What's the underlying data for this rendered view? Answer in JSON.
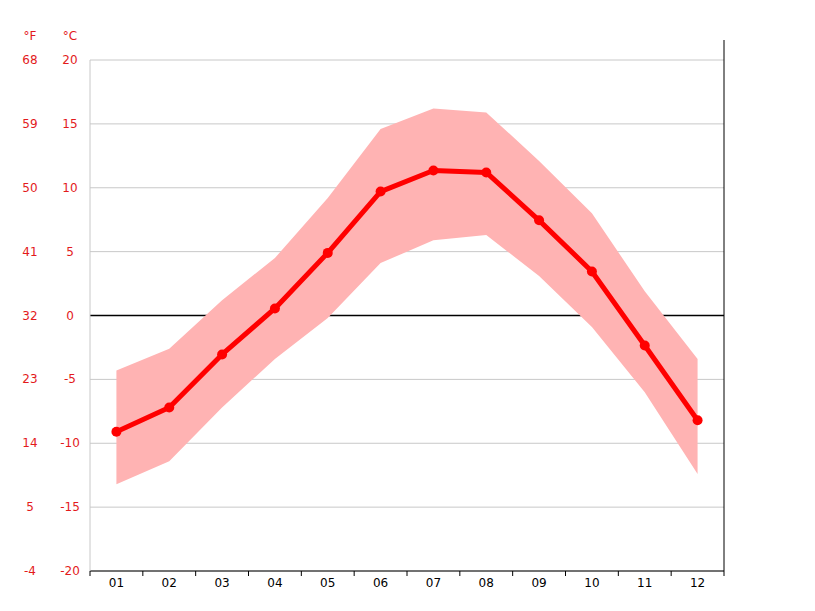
{
  "chart_data": {
    "type": "line",
    "x": [
      1,
      2,
      3,
      4,
      5,
      6,
      7,
      8,
      9,
      10,
      11,
      12
    ],
    "xlim": [
      0.5,
      12.5
    ],
    "xticks": [
      {
        "value": 1,
        "label": "01"
      },
      {
        "value": 2,
        "label": "02"
      },
      {
        "value": 3,
        "label": "03"
      },
      {
        "value": 4,
        "label": "04"
      },
      {
        "value": 5,
        "label": "05"
      },
      {
        "value": 6,
        "label": "06"
      },
      {
        "value": 7,
        "label": "07"
      },
      {
        "value": 8,
        "label": "08"
      },
      {
        "value": 9,
        "label": "09"
      },
      {
        "value": 10,
        "label": "10"
      },
      {
        "value": 11,
        "label": "11"
      },
      {
        "value": 12,
        "label": "12"
      }
    ],
    "ylabel": "°C",
    "ylim": [
      -20,
      20
    ],
    "yticks": [
      -20,
      -15,
      -10,
      -5,
      0,
      5,
      10,
      15,
      20
    ],
    "y2label": "°F",
    "y2lim": [
      -4,
      68
    ],
    "y2ticks": [
      -4,
      5,
      14,
      23,
      32,
      41,
      50,
      59,
      68
    ],
    "grid": true,
    "series": [
      {
        "type": "area",
        "color": "#ffb3b3",
        "values": [
          -4.3,
          -2.6,
          1.2,
          4.5,
          9.2,
          14.6,
          16.2,
          15.9,
          12.1,
          8.0,
          1.9,
          -3.4
        ],
        "low": [
          -13.2,
          -11.4,
          -7.2,
          -3.4,
          -0.2,
          4.1,
          5.9,
          6.3,
          3.1,
          -0.9,
          -6.0,
          -12.4
        ]
      },
      {
        "type": "line",
        "color": "#ff0000",
        "marker": "circle",
        "values": [
          -9.1,
          -7.2,
          -3.05,
          0.55,
          4.9,
          9.7,
          11.35,
          11.2,
          7.45,
          3.45,
          -2.35,
          -8.2
        ]
      }
    ]
  }
}
